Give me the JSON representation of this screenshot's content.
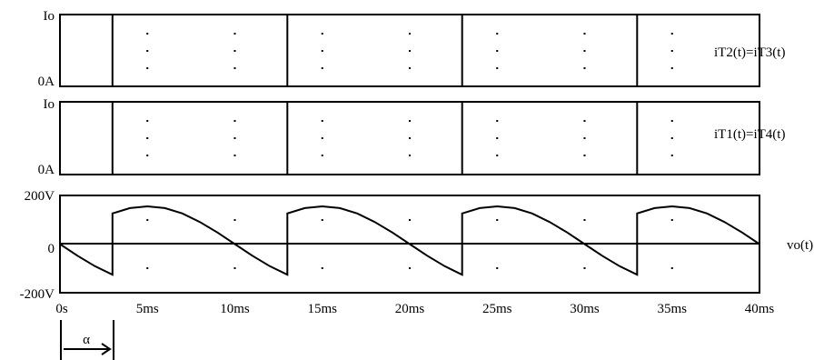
{
  "chart_data": [
    {
      "type": "line",
      "name": "iT2(t)=iT3(t)",
      "y_tick_labels": {
        "top": "Io",
        "bottom": "0A"
      },
      "series": [
        {
          "name": "iT2(t)=iT3(t)",
          "x_ms": [
            0,
            3,
            3,
            13,
            13,
            23,
            23,
            33,
            33,
            40
          ],
          "level": [
            1,
            1,
            0,
            0,
            1,
            1,
            0,
            0,
            1,
            1
          ]
        }
      ]
    },
    {
      "type": "line",
      "name": "iT1(t)=iT4(t)",
      "y_tick_labels": {
        "top": "Io",
        "bottom": "0A"
      },
      "series": [
        {
          "name": "iT1(t)=iT4(t)",
          "x_ms": [
            0,
            3,
            3,
            13,
            13,
            23,
            23,
            33,
            33,
            40
          ],
          "level": [
            0,
            0,
            1,
            1,
            0,
            0,
            1,
            1,
            0,
            0
          ]
        }
      ]
    },
    {
      "type": "line",
      "name": "vo(t)",
      "y_tick_labels": {
        "top": "200V",
        "middle": "0",
        "bottom": "-200V"
      },
      "ylim": [
        -200,
        200
      ],
      "period_ms": 20,
      "frequency_hz": 50,
      "firing_delay_ms": 3,
      "series": [
        {
          "name": "vo(t)",
          "x_ms": [
            0,
            1,
            2,
            3,
            3,
            4,
            5,
            6,
            7,
            8,
            9,
            10,
            11,
            12,
            13,
            13,
            14,
            15,
            16,
            17,
            18,
            19,
            20,
            21,
            22,
            23,
            23,
            24,
            25,
            26,
            27,
            28,
            29,
            30,
            31,
            32,
            33,
            33,
            34,
            35,
            36,
            37,
            38,
            39,
            40
          ],
          "y_volts": [
            0,
            -48,
            -91,
            -126,
            126,
            148,
            155,
            148,
            126,
            91,
            48,
            0,
            -48,
            -91,
            -126,
            126,
            148,
            155,
            148,
            126,
            91,
            48,
            0,
            -48,
            -91,
            -126,
            126,
            148,
            155,
            148,
            126,
            91,
            48,
            0,
            -48,
            -91,
            -126,
            126,
            148,
            155,
            148,
            126,
            91,
            48,
            0
          ]
        }
      ]
    }
  ],
  "x_axis": {
    "tick_labels": [
      "0s",
      "5ms",
      "10ms",
      "15ms",
      "20ms",
      "25ms",
      "30ms",
      "35ms",
      "40ms"
    ],
    "xlim_ms": [
      0,
      40
    ]
  },
  "annotation": {
    "label": "α"
  }
}
